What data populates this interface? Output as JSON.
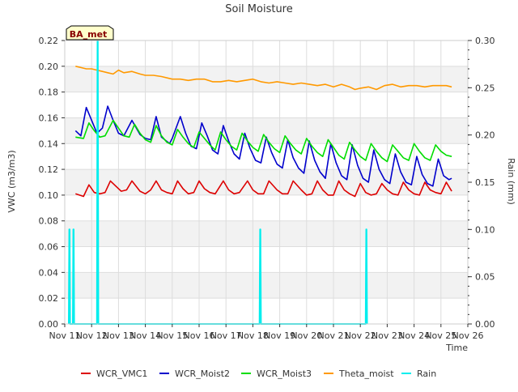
{
  "chart_data": {
    "type": "line",
    "title": "Soil Moisture",
    "xlabel": "Time",
    "ylabel_left": "VWC (m3/m3)",
    "ylabel_right": "Rain (mm)",
    "station_label": "BA_met",
    "xlim": [
      11,
      26
    ],
    "x_ticks": [
      {
        "value": 11,
        "label": "Nov 11"
      },
      {
        "value": 12,
        "label": "Nov 12"
      },
      {
        "value": 13,
        "label": "Nov 13"
      },
      {
        "value": 14,
        "label": "Nov 14"
      },
      {
        "value": 15,
        "label": "Nov 15"
      },
      {
        "value": 16,
        "label": "Nov 16"
      },
      {
        "value": 17,
        "label": "Nov 17"
      },
      {
        "value": 18,
        "label": "Nov 18"
      },
      {
        "value": 19,
        "label": "Nov 19"
      },
      {
        "value": 20,
        "label": "Nov 20"
      },
      {
        "value": 21,
        "label": "Nov 21"
      },
      {
        "value": 22,
        "label": "Nov 22"
      },
      {
        "value": 23,
        "label": "Nov 23"
      },
      {
        "value": 24,
        "label": "Nov 24"
      },
      {
        "value": 25,
        "label": "Nov 25"
      },
      {
        "value": 26,
        "label": "Nov 26"
      }
    ],
    "ylim_left": [
      0,
      0.22
    ],
    "y_ticks_left": [
      "0.00",
      "0.02",
      "0.04",
      "0.06",
      "0.08",
      "0.10",
      "0.12",
      "0.14",
      "0.16",
      "0.18",
      "0.20",
      "0.22"
    ],
    "ylim_right": [
      0,
      0.3
    ],
    "y_ticks_right": [
      "0.00",
      "0.05",
      "0.10",
      "0.15",
      "0.20",
      "0.25",
      "0.30"
    ],
    "grid": true,
    "legend_placement": "bottom",
    "series": [
      {
        "name": "WCR_VMC1",
        "color": "#dd0000",
        "axis": "left",
        "x": [
          11.4,
          11.7,
          11.9,
          12.1,
          12.3,
          12.5,
          12.7,
          12.9,
          13.1,
          13.3,
          13.5,
          13.8,
          14.0,
          14.2,
          14.4,
          14.6,
          14.8,
          15.0,
          15.2,
          15.4,
          15.6,
          15.8,
          16.0,
          16.2,
          16.4,
          16.6,
          16.9,
          17.1,
          17.3,
          17.5,
          17.8,
          18.0,
          18.2,
          18.4,
          18.6,
          18.9,
          19.1,
          19.3,
          19.5,
          19.8,
          20.0,
          20.2,
          20.4,
          20.6,
          20.8,
          21.0,
          21.2,
          21.4,
          21.6,
          21.8,
          22.0,
          22.2,
          22.4,
          22.6,
          22.8,
          23.0,
          23.2,
          23.4,
          23.6,
          23.8,
          24.0,
          24.2,
          24.4,
          24.6,
          24.8,
          25.0,
          25.2,
          25.4
        ],
        "y": [
          0.101,
          0.099,
          0.108,
          0.102,
          0.101,
          0.102,
          0.111,
          0.107,
          0.103,
          0.104,
          0.111,
          0.103,
          0.101,
          0.104,
          0.111,
          0.104,
          0.102,
          0.101,
          0.111,
          0.105,
          0.101,
          0.102,
          0.111,
          0.105,
          0.102,
          0.101,
          0.111,
          0.104,
          0.101,
          0.102,
          0.111,
          0.104,
          0.101,
          0.101,
          0.111,
          0.104,
          0.101,
          0.101,
          0.111,
          0.104,
          0.1,
          0.101,
          0.111,
          0.104,
          0.1,
          0.1,
          0.111,
          0.104,
          0.101,
          0.099,
          0.109,
          0.102,
          0.1,
          0.101,
          0.109,
          0.104,
          0.101,
          0.1,
          0.11,
          0.104,
          0.101,
          0.1,
          0.11,
          0.104,
          0.102,
          0.101,
          0.11,
          0.103
        ]
      },
      {
        "name": "WCR_Moist2",
        "color": "#0000cc",
        "axis": "left",
        "x": [
          11.4,
          11.6,
          11.8,
          12.0,
          12.2,
          12.4,
          12.6,
          12.8,
          13.0,
          13.2,
          13.5,
          13.8,
          14.0,
          14.2,
          14.4,
          14.6,
          14.9,
          15.0,
          15.3,
          15.5,
          15.7,
          15.9,
          16.1,
          16.3,
          16.5,
          16.7,
          16.9,
          17.1,
          17.3,
          17.5,
          17.7,
          17.9,
          18.1,
          18.3,
          18.5,
          18.7,
          18.9,
          19.1,
          19.3,
          19.5,
          19.7,
          19.9,
          20.1,
          20.3,
          20.5,
          20.7,
          20.9,
          21.1,
          21.3,
          21.5,
          21.7,
          21.9,
          22.1,
          22.3,
          22.5,
          22.7,
          22.9,
          23.1,
          23.3,
          23.5,
          23.7,
          23.9,
          24.1,
          24.3,
          24.5,
          24.7,
          24.9,
          25.1,
          25.3,
          25.4
        ],
        "y": [
          0.15,
          0.146,
          0.168,
          0.158,
          0.148,
          0.152,
          0.169,
          0.158,
          0.148,
          0.146,
          0.158,
          0.147,
          0.144,
          0.143,
          0.161,
          0.145,
          0.14,
          0.144,
          0.161,
          0.148,
          0.138,
          0.136,
          0.156,
          0.146,
          0.135,
          0.132,
          0.154,
          0.142,
          0.132,
          0.128,
          0.148,
          0.136,
          0.127,
          0.125,
          0.145,
          0.133,
          0.124,
          0.121,
          0.143,
          0.129,
          0.121,
          0.117,
          0.142,
          0.127,
          0.118,
          0.113,
          0.14,
          0.125,
          0.115,
          0.112,
          0.139,
          0.123,
          0.113,
          0.11,
          0.135,
          0.12,
          0.112,
          0.109,
          0.132,
          0.118,
          0.11,
          0.108,
          0.13,
          0.116,
          0.109,
          0.107,
          0.128,
          0.115,
          0.112,
          0.113
        ]
      },
      {
        "name": "WCR_Moist3",
        "color": "#00dd00",
        "axis": "left",
        "x": [
          11.4,
          11.7,
          11.9,
          12.1,
          12.3,
          12.5,
          12.8,
          13.0,
          13.2,
          13.4,
          13.6,
          13.8,
          14.0,
          14.2,
          14.4,
          14.6,
          14.8,
          15.0,
          15.2,
          15.4,
          15.6,
          15.8,
          16.0,
          16.2,
          16.4,
          16.6,
          16.8,
          17.0,
          17.2,
          17.4,
          17.6,
          17.8,
          18.0,
          18.2,
          18.4,
          18.6,
          18.8,
          19.0,
          19.2,
          19.4,
          19.6,
          19.8,
          20.0,
          20.2,
          20.4,
          20.6,
          20.8,
          21.0,
          21.2,
          21.4,
          21.6,
          21.8,
          22.0,
          22.2,
          22.4,
          22.6,
          22.8,
          23.0,
          23.2,
          23.4,
          23.6,
          23.8,
          24.0,
          24.2,
          24.4,
          24.6,
          24.8,
          25.0,
          25.2,
          25.4
        ],
        "y": [
          0.145,
          0.144,
          0.156,
          0.15,
          0.145,
          0.146,
          0.158,
          0.152,
          0.146,
          0.145,
          0.155,
          0.148,
          0.143,
          0.141,
          0.154,
          0.146,
          0.141,
          0.139,
          0.151,
          0.145,
          0.14,
          0.137,
          0.149,
          0.144,
          0.139,
          0.135,
          0.149,
          0.143,
          0.138,
          0.135,
          0.148,
          0.142,
          0.137,
          0.134,
          0.147,
          0.141,
          0.136,
          0.133,
          0.146,
          0.14,
          0.135,
          0.132,
          0.144,
          0.138,
          0.133,
          0.13,
          0.143,
          0.137,
          0.131,
          0.128,
          0.141,
          0.135,
          0.13,
          0.127,
          0.14,
          0.134,
          0.129,
          0.126,
          0.139,
          0.134,
          0.129,
          0.127,
          0.14,
          0.134,
          0.129,
          0.127,
          0.139,
          0.134,
          0.131,
          0.13
        ]
      },
      {
        "name": "Theta_moist",
        "color": "#ff9900",
        "axis": "left",
        "x": [
          11.4,
          11.6,
          11.8,
          12.0,
          12.2,
          12.4,
          12.6,
          12.8,
          13.0,
          13.2,
          13.5,
          13.8,
          14.0,
          14.3,
          14.6,
          15.0,
          15.3,
          15.6,
          15.9,
          16.2,
          16.5,
          16.8,
          17.1,
          17.4,
          17.7,
          18.0,
          18.3,
          18.6,
          18.9,
          19.2,
          19.5,
          19.8,
          20.1,
          20.4,
          20.7,
          21.0,
          21.3,
          21.6,
          21.8,
          22.0,
          22.3,
          22.6,
          22.9,
          23.2,
          23.5,
          23.8,
          24.1,
          24.4,
          24.7,
          25.0,
          25.2,
          25.4
        ],
        "y": [
          0.2,
          0.199,
          0.198,
          0.198,
          0.197,
          0.196,
          0.195,
          0.194,
          0.197,
          0.195,
          0.196,
          0.194,
          0.193,
          0.193,
          0.192,
          0.19,
          0.19,
          0.189,
          0.19,
          0.19,
          0.188,
          0.188,
          0.189,
          0.188,
          0.189,
          0.19,
          0.188,
          0.187,
          0.188,
          0.187,
          0.186,
          0.187,
          0.186,
          0.185,
          0.186,
          0.184,
          0.186,
          0.184,
          0.182,
          0.183,
          0.184,
          0.182,
          0.185,
          0.186,
          0.184,
          0.185,
          0.185,
          0.184,
          0.185,
          0.185,
          0.185,
          0.184
        ]
      },
      {
        "name": "Rain",
        "color": "#00eeee",
        "axis": "right",
        "x": [
          11.15,
          11.17,
          11.18,
          11.2,
          11.3,
          11.32,
          11.33,
          11.35,
          12.2,
          12.22,
          12.23,
          12.25,
          18.25,
          18.27,
          18.28,
          18.3,
          22.2,
          22.22,
          22.23,
          22.25
        ],
        "y": [
          0,
          0.1,
          0.1,
          0,
          0,
          0.1,
          0.1,
          0,
          0,
          0.3,
          0.3,
          0,
          0,
          0.1,
          0.1,
          0,
          0,
          0.1,
          0.1,
          0
        ]
      }
    ]
  }
}
